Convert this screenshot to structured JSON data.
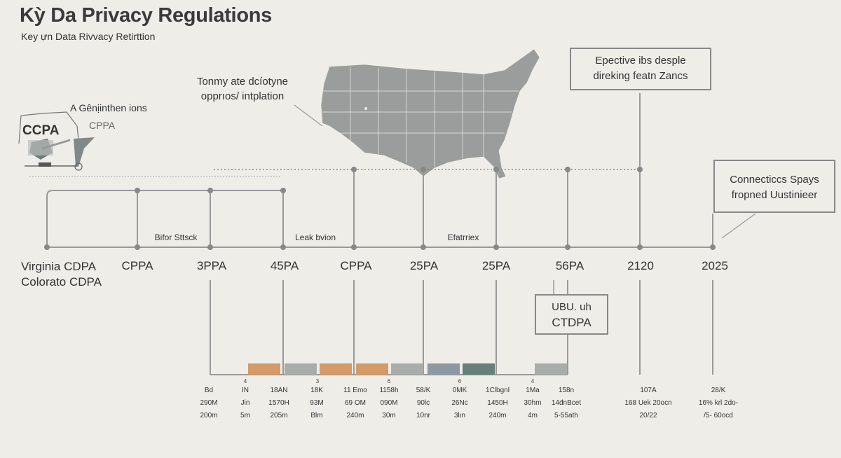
{
  "header": {
    "title": "Kỳ Da Privacy Regulations",
    "subtitle": "Key ựn Data Rivvacy Retirttion"
  },
  "left_panel": {
    "caption": "A Gênịinthen ions",
    "secondary_label": "CPPA",
    "badge_label": "CCPA"
  },
  "map_note": [
    "Tonmy ate dcíotyne",
    "opprıos/ intplation"
  ],
  "callouts": {
    "top_right": [
      "Epective ibs desple",
      "direking  featn Zancs"
    ],
    "right": [
      "Connecticcs Spays",
      "fropned Uustinieer"
    ],
    "middle": [
      "UBU. uh",
      "CTDPA"
    ]
  },
  "timeline": {
    "labels": [
      [
        "Virginia CDPA",
        "Colorato CDPA"
      ],
      "CPPA",
      "3PPA",
      "45PA",
      "CPPA",
      "25PA",
      "25PA",
      "56PA",
      "2120",
      "2025"
    ],
    "mid_labels": [
      "Bifor Sttsck",
      "Leak bvion",
      "Efatrriex"
    ]
  },
  "bars": {
    "colors": [
      "#d49a68",
      "#a9adaa",
      "#d49a68",
      "#d49a68",
      "#a9adaa",
      "#8c98a2",
      "#667f7b",
      "#a9adaa"
    ],
    "counts": [
      "4",
      "3",
      "6",
      "6",
      "4"
    ]
  },
  "columns": [
    [
      "Bd",
      "290M",
      "200m"
    ],
    [
      "IN",
      "Jin",
      "5m"
    ],
    [
      "18AN",
      "1570H",
      "205m"
    ],
    [
      "18K",
      "93M",
      "Blm"
    ],
    [
      "11 Emo",
      "69 OM",
      "240m"
    ],
    [
      "1158h",
      "090M",
      "30m"
    ],
    [
      "58/K",
      "90lc",
      "10nr"
    ],
    [
      "0MK",
      "26Nc",
      "3lın"
    ],
    [
      "1Clbgnl",
      "1450H",
      "240m"
    ],
    [
      "1Ma",
      "30hm",
      "4m"
    ],
    [
      "158n",
      "14đnBcet",
      "5-55ath"
    ],
    [
      "107A",
      "168 Uek 20ocn",
      "20/22"
    ],
    [
      "28/K",
      "16% krl 2do-",
      "/5- 60ocd"
    ]
  ],
  "colors": {
    "background": "#eeede8",
    "line": "#999999",
    "map": "#9a9d9b"
  }
}
